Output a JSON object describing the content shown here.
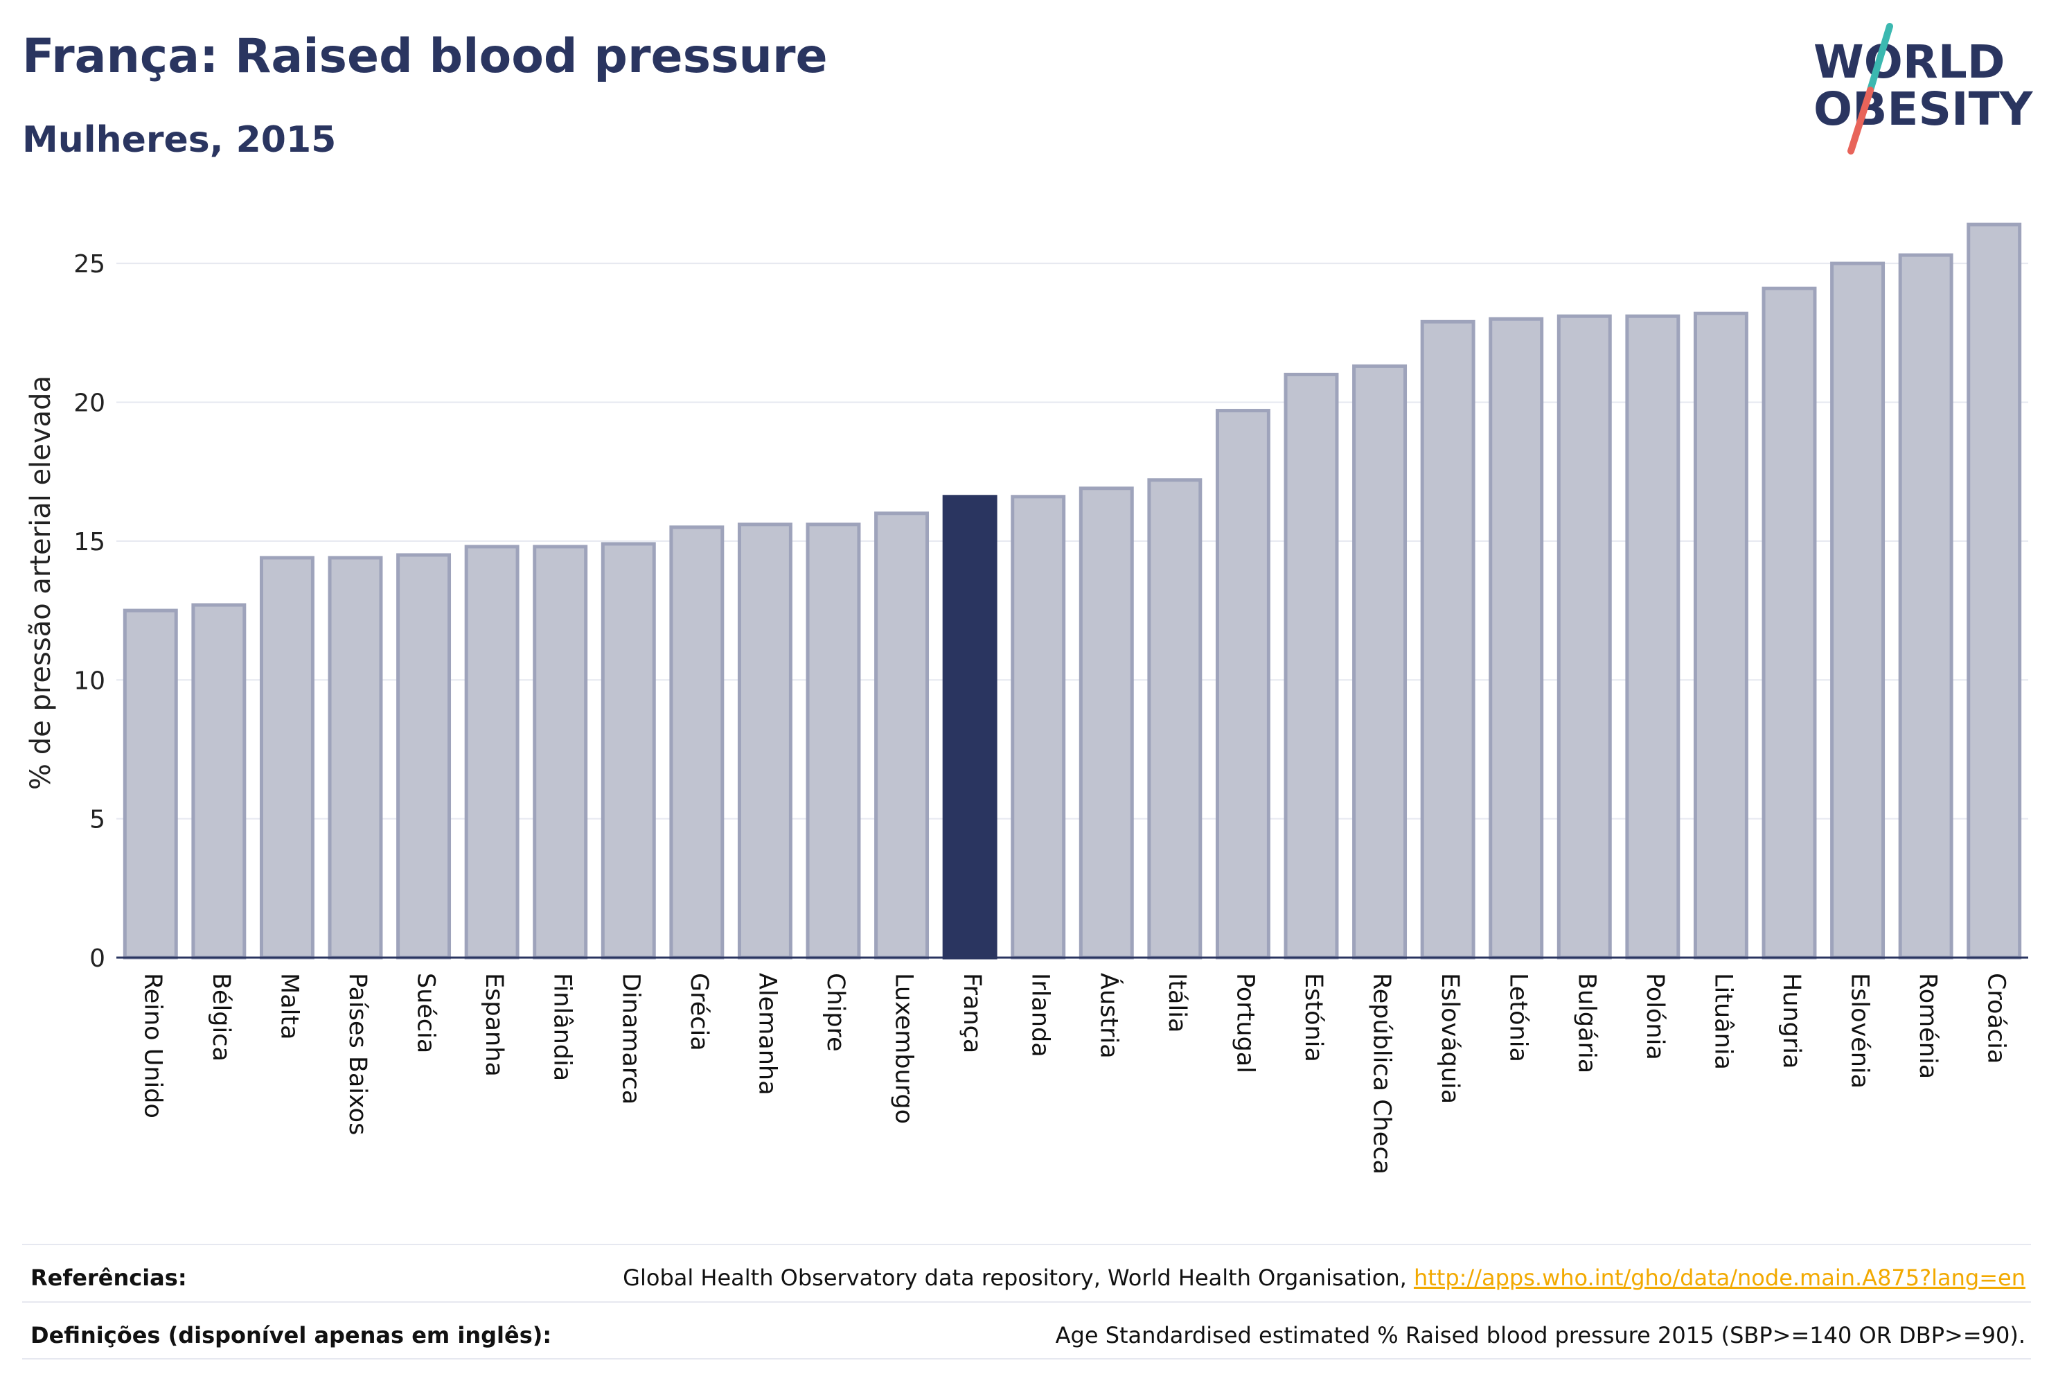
{
  "header": {
    "title": "França: Raised blood pressure",
    "subtitle": "Mulheres, 2015"
  },
  "logo": {
    "line1": "WORLD",
    "line2": "OBESITY",
    "accent_teal": "#3bb8b0",
    "accent_coral": "#e8645a"
  },
  "colors": {
    "highlight": "#2a3560",
    "bar_fill": "#c0c3d0",
    "bar_stroke": "#9ea3bb",
    "grid": "#e6e8f0",
    "axis": "#2a3560"
  },
  "chart_data": {
    "type": "bar",
    "ylabel": "% de pressão arterial elevada",
    "ylim": [
      0,
      27
    ],
    "yticks": [
      0,
      5,
      10,
      15,
      20,
      25
    ],
    "highlight": "França",
    "categories": [
      "Reino Unido",
      "Bélgica",
      "Malta",
      "Países Baixos",
      "Suécia",
      "Espanha",
      "Finlândia",
      "Dinamarca",
      "Grécia",
      "Alemanha",
      "Chipre",
      "Luxemburgo",
      "França",
      "Irlanda",
      "Áustria",
      "Itália",
      "Portugal",
      "Estónia",
      "República Checa",
      "Eslováquia",
      "Letónia",
      "Bulgária",
      "Polónia",
      "Lituânia",
      "Hungria",
      "Eslovénia",
      "Roménia",
      "Croácia"
    ],
    "values": [
      12.5,
      12.7,
      14.4,
      14.4,
      14.5,
      14.8,
      14.8,
      14.9,
      15.5,
      15.6,
      15.6,
      16.0,
      16.6,
      16.6,
      16.9,
      17.2,
      19.7,
      21.0,
      21.3,
      22.9,
      23.0,
      23.1,
      23.1,
      23.2,
      24.1,
      25.0,
      25.3,
      26.4
    ]
  },
  "footer": {
    "references_label": "Referências:",
    "references_text": "Global Health Observatory data repository, World Health Organisation, ",
    "references_link": "http://apps.who.int/gho/data/node.main.A875?lang=en",
    "definitions_label": "Definições (disponível apenas em inglês):",
    "definitions_text": "Age Standardised estimated % Raised blood pressure 2015 (SBP>=140 OR DBP>=90)."
  }
}
